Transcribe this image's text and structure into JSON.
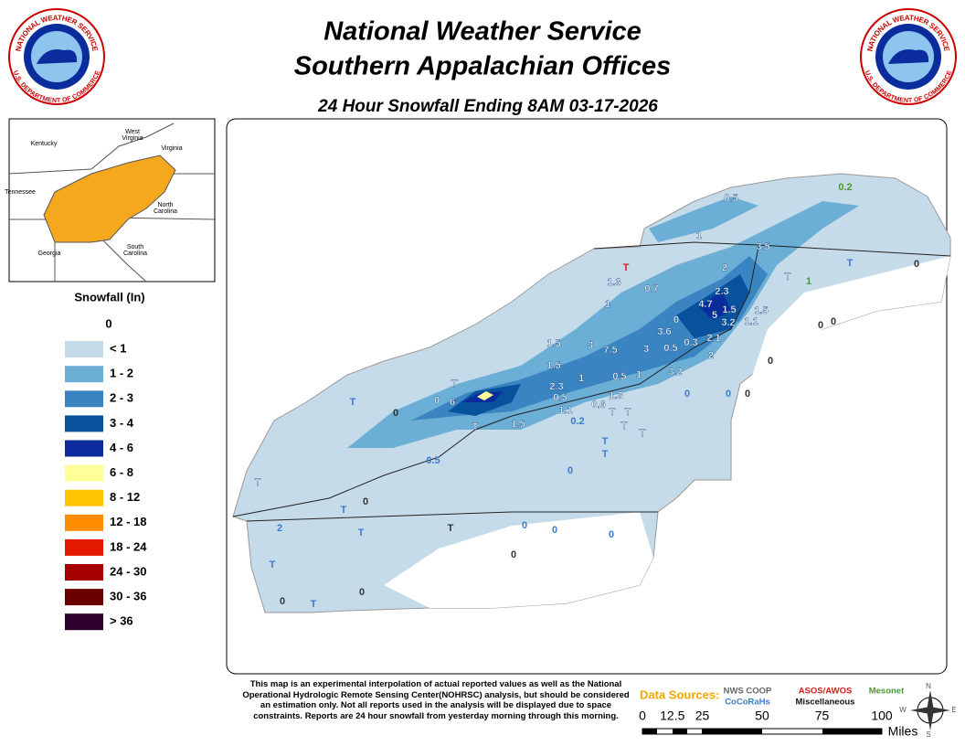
{
  "header": {
    "title": "National Weather Service",
    "subtitle": "Southern Appalachian Offices",
    "product": "24 Hour Snowfall Ending 8AM 03-17-2026"
  },
  "logo": {
    "top_text": "NATIONAL WEATHER SERVICE",
    "bottom_text": "U.S. DEPARTMENT OF COMMERCE"
  },
  "inset": {
    "labels": [
      "West Virginia",
      "Kentucky",
      "Virginia",
      "Tennessee",
      "North Carolina",
      "South Carolina",
      "Georgia"
    ]
  },
  "legend": {
    "title": "Snowfall (In)",
    "entries": [
      {
        "label": "0",
        "color": "#ffffff"
      },
      {
        "label": "< 1",
        "color": "#c6dbea"
      },
      {
        "label": "1 - 2",
        "color": "#6baed6"
      },
      {
        "label": "2 - 3",
        "color": "#3a84c2"
      },
      {
        "label": "3 - 4",
        "color": "#08519c"
      },
      {
        "label": "4 - 6",
        "color": "#0a2c9c"
      },
      {
        "label": "6 - 8",
        "color": "#ffff99"
      },
      {
        "label": "8 - 12",
        "color": "#ffc400"
      },
      {
        "label": "12 - 18",
        "color": "#ff8c00"
      },
      {
        "label": "18 - 24",
        "color": "#e31a00"
      },
      {
        "label": "24 - 30",
        "color": "#a50000"
      },
      {
        "label": "30 - 36",
        "color": "#6b0000"
      },
      {
        "label": "> 36",
        "color": "#2d0030"
      }
    ]
  },
  "reports": [
    {
      "value": 0.5,
      "color": "#ffffff"
    },
    {
      "value": 0.2,
      "color": "#4a9a2a"
    },
    {
      "value": 1,
      "color": "#ffffff"
    },
    {
      "value": 3.5,
      "color": "#ffffff"
    },
    {
      "value": "T",
      "color": "#d42020"
    },
    {
      "value": 1.3,
      "color": "#ffffff"
    },
    {
      "value": 0.7,
      "color": "#ffffff"
    },
    {
      "value": 2,
      "color": "#ffffff"
    },
    {
      "value": "T",
      "color": "#ffffff"
    },
    {
      "value": 1,
      "color": "#4a9a2a"
    },
    {
      "value": "T",
      "color": "#3a7cc9"
    },
    {
      "value": 0,
      "color": "#333333"
    },
    {
      "value": 1,
      "color": "#ffffff"
    },
    {
      "value": 2.3,
      "color": "#ffffff"
    },
    {
      "value": 4.7,
      "color": "#ffffff"
    },
    {
      "value": 5,
      "color": "#ffffff"
    },
    {
      "value": 1.5,
      "color": "#ffffff"
    },
    {
      "value": 1.5,
      "color": "#ffffff"
    },
    {
      "value": 3.2,
      "color": "#ffffff"
    },
    {
      "value": 1.1,
      "color": "#ffffff"
    },
    {
      "value": 0,
      "color": "#ffffff"
    },
    {
      "value": 0,
      "color": "#333333"
    },
    {
      "value": 0,
      "color": "#333333"
    },
    {
      "value": 3.6,
      "color": "#ffffff"
    },
    {
      "value": 2.1,
      "color": "#ffffff"
    },
    {
      "value": 1.5,
      "color": "#ffffff"
    },
    {
      "value": 3,
      "color": "#ffffff"
    },
    {
      "value": 7.5,
      "color": "#ffffff"
    },
    {
      "value": 3,
      "color": "#ffffff"
    },
    {
      "value": 0.5,
      "color": "#ffffff"
    },
    {
      "value": 0.3,
      "color": "#ffffff"
    },
    {
      "value": 2,
      "color": "#ffffff"
    },
    {
      "value": 0,
      "color": "#333333"
    },
    {
      "value": 1.5,
      "color": "#ffffff"
    },
    {
      "value": 1,
      "color": "#ffffff"
    },
    {
      "value": 0.5,
      "color": "#ffffff"
    },
    {
      "value": 1,
      "color": "#ffffff"
    },
    {
      "value": 3.2,
      "color": "#ffffff"
    },
    {
      "value": "T",
      "color": "#ffffff"
    },
    {
      "value": 2.3,
      "color": "#ffffff"
    },
    {
      "value": 1.3,
      "color": "#ffffff"
    },
    {
      "value": 0,
      "color": "#3a7cc9"
    },
    {
      "value": 0,
      "color": "#3a7cc9"
    },
    {
      "value": 0,
      "color": "#333333"
    },
    {
      "value": "T",
      "color": "#3a7cc9"
    },
    {
      "value": 0,
      "color": "#ffffff"
    },
    {
      "value": 6,
      "color": "#ffffff"
    },
    {
      "value": 0.5,
      "color": "#ffffff"
    },
    {
      "value": 0.6,
      "color": "#ffffff"
    },
    {
      "value": "T",
      "color": "#ffffff"
    },
    {
      "value": "T",
      "color": "#ffffff"
    },
    {
      "value": 1.1,
      "color": "#ffffff"
    },
    {
      "value": 0,
      "color": "#333333"
    },
    {
      "value": "T",
      "color": "#ffffff"
    },
    {
      "value": 1.5,
      "color": "#ffffff"
    },
    {
      "value": 0.2,
      "color": "#3a7cc9"
    },
    {
      "value": "T",
      "color": "#ffffff"
    },
    {
      "value": "T",
      "color": "#ffffff"
    },
    {
      "value": "T",
      "color": "#3a7cc9"
    },
    {
      "value": "T",
      "color": "#3a7cc9"
    },
    {
      "value": 0.5,
      "color": "#3a7cc9"
    },
    {
      "value": 0,
      "color": "#3a7cc9"
    },
    {
      "value": "T",
      "color": "#ffffff"
    },
    {
      "value": 0,
      "color": "#333333"
    },
    {
      "value": "T",
      "color": "#3a7cc9"
    },
    {
      "value": 0,
      "color": "#3a7cc9"
    },
    {
      "value": 0,
      "color": "#3a7cc9"
    },
    {
      "value": 0,
      "color": "#3a7cc9"
    },
    {
      "value": 2,
      "color": "#3a7cc9"
    },
    {
      "value": "T",
      "color": "#3a7cc9"
    },
    {
      "value": "T",
      "color": "#333333"
    },
    {
      "value": 0,
      "color": "#333333"
    },
    {
      "value": "T",
      "color": "#3a7cc9"
    },
    {
      "value": 0,
      "color": "#333333"
    },
    {
      "value": 0,
      "color": "#333333"
    },
    {
      "value": "T",
      "color": "#3a7cc9"
    }
  ],
  "disclaimer": "This map is an experimental interpolation of actual reported values as well as the National Operational Hydrologic Remote Sensing Center(NOHRSC) analysis, but should be considered an estimation only. Not all reports used in the analysis will be displayed due to space constraints. Reports are 24 hour snowfall from yesterday morning through this morning.",
  "sources": {
    "title": "Data Sources:",
    "items": [
      {
        "label": "NWS COOP",
        "color": "#666666"
      },
      {
        "label": "CoCoRaHs",
        "color": "#3a7cc9"
      },
      {
        "label": "ASOS/AWOS",
        "color": "#d42020"
      },
      {
        "label": "Miscellaneous",
        "color": "#111111"
      },
      {
        "label": "Mesonet",
        "color": "#4a9a2a"
      }
    ]
  },
  "scale": {
    "ticks": [
      0,
      12.5,
      25,
      50,
      75,
      100
    ],
    "unit": "Miles"
  },
  "compass": [
    "N",
    "E",
    "S",
    "W"
  ]
}
